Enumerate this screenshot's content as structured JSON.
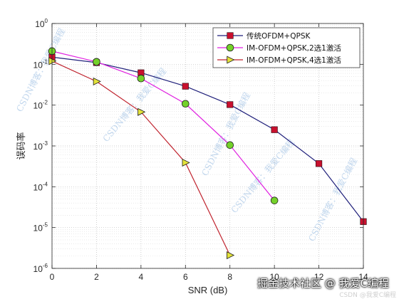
{
  "chart_data": {
    "type": "line",
    "title": "",
    "xlabel": "SNR (dB)",
    "ylabel": "误码率",
    "xlim": [
      0,
      14
    ],
    "ylim": [
      1e-06,
      1
    ],
    "yscale": "log",
    "grid": true,
    "legend_position": "top-right",
    "x_ticks": [
      0,
      2,
      4,
      6,
      8,
      10,
      12,
      14
    ],
    "y_ticks": [
      {
        "base": "10",
        "exp": "0",
        "value": 1
      },
      {
        "base": "10",
        "exp": "-1",
        "value": 0.1
      },
      {
        "base": "10",
        "exp": "-2",
        "value": 0.01
      },
      {
        "base": "10",
        "exp": "-3",
        "value": 0.001
      },
      {
        "base": "10",
        "exp": "-4",
        "value": 0.0001
      },
      {
        "base": "10",
        "exp": "-5",
        "value": 1e-05
      },
      {
        "base": "10",
        "exp": "-6",
        "value": 1e-06
      }
    ],
    "series": [
      {
        "name": "传统OFDM+QPSK",
        "color": "#1f1f7a",
        "marker": "square",
        "marker_color": "#c8102e",
        "x": [
          0,
          2,
          4,
          6,
          8,
          10,
          12,
          14
        ],
        "y": [
          0.15,
          0.11,
          0.062,
          0.029,
          0.0103,
          0.0025,
          0.00037,
          1.4e-05
        ]
      },
      {
        "name": "IM-OFDM+QPSK,2选1激活",
        "color": "#e020e0",
        "marker": "circle",
        "marker_color": "#74d12a",
        "x": [
          0,
          2,
          4,
          6,
          8,
          10
        ],
        "y": [
          0.21,
          0.115,
          0.045,
          0.0108,
          0.00105,
          4.6e-05
        ]
      },
      {
        "name": "IM-OFDM+QPSK,4选1激活",
        "color": "#c0232e",
        "marker": "triangle-right",
        "marker_color": "#e3e23a",
        "x": [
          0,
          2,
          4,
          6,
          8
        ],
        "y": [
          0.12,
          0.038,
          0.0068,
          0.00039,
          2.1e-06
        ]
      }
    ]
  },
  "watermarks": [
    "CSDN博客：我爱C编程",
    "CSDN博客：我爱C编程",
    "CSDN博客：我爱C编程",
    "CSDN博客：我爱C编程",
    "CSDN博客：我爱C编程"
  ],
  "branding": {
    "main": "掘金技术社区 @ 我爱C编程",
    "sub": "CSDN @我爱C编程"
  }
}
